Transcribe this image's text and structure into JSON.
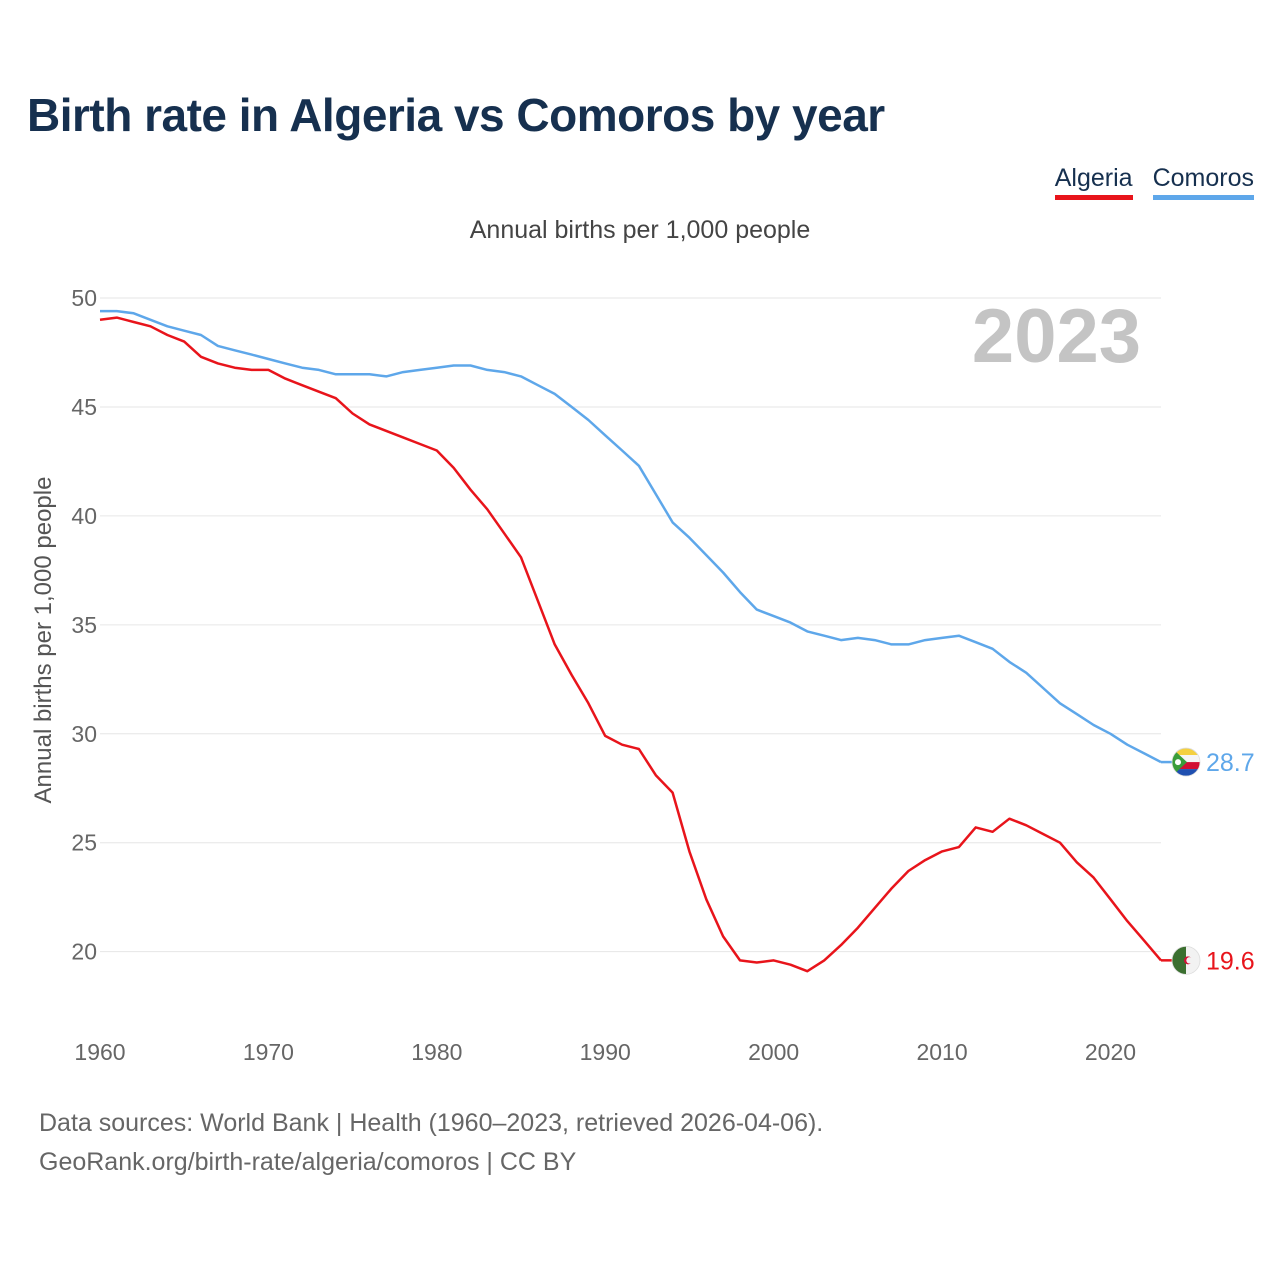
{
  "title": "Birth rate in Algeria vs Comoros by year",
  "subtitle": "Annual births per 1,000 people",
  "year_label": "2023",
  "footer": {
    "line1": "Data sources: World Bank | Health (1960–2023, retrieved 2026-04-06).",
    "line2": "GeoRank.org/birth-rate/algeria/comoros | CC BY"
  },
  "chart_data": {
    "type": "line",
    "title": "Birth rate in Algeria vs Comoros by year",
    "subtitle": "Annual births per 1,000 people",
    "xlabel": "",
    "ylabel": "Annual births per 1,000 people",
    "xlim": [
      1960,
      2023
    ],
    "ylim": [
      17,
      50
    ],
    "xticks": [
      1960,
      1970,
      1980,
      1990,
      2000,
      2010,
      2020
    ],
    "yticks": [
      20,
      25,
      30,
      35,
      40,
      45,
      50
    ],
    "grid": true,
    "legend_position": "top-right",
    "x": [
      1960,
      1961,
      1962,
      1963,
      1964,
      1965,
      1966,
      1967,
      1968,
      1969,
      1970,
      1971,
      1972,
      1973,
      1974,
      1975,
      1976,
      1977,
      1978,
      1979,
      1980,
      1981,
      1982,
      1983,
      1984,
      1985,
      1986,
      1987,
      1988,
      1989,
      1990,
      1991,
      1992,
      1993,
      1994,
      1995,
      1996,
      1997,
      1998,
      1999,
      2000,
      2001,
      2002,
      2003,
      2004,
      2005,
      2006,
      2007,
      2008,
      2009,
      2010,
      2011,
      2012,
      2013,
      2014,
      2015,
      2016,
      2017,
      2018,
      2019,
      2020,
      2021,
      2022,
      2023
    ],
    "series": [
      {
        "name": "Algeria",
        "color": "#e8141b",
        "end_label": "19.6",
        "values": [
          49.0,
          49.1,
          48.9,
          48.7,
          48.3,
          48.0,
          47.3,
          47.0,
          46.8,
          46.7,
          46.7,
          46.3,
          46.0,
          45.7,
          45.4,
          44.7,
          44.2,
          43.9,
          43.6,
          43.3,
          43.0,
          42.2,
          41.2,
          40.3,
          39.2,
          38.1,
          36.1,
          34.1,
          32.7,
          31.4,
          29.9,
          29.5,
          29.3,
          28.1,
          27.3,
          24.6,
          22.4,
          20.7,
          19.6,
          19.5,
          19.6,
          19.4,
          19.1,
          19.6,
          20.3,
          21.1,
          22.0,
          22.9,
          23.7,
          24.2,
          24.6,
          24.8,
          25.7,
          25.5,
          26.1,
          25.8,
          25.4,
          25.0,
          24.1,
          23.4,
          22.4,
          21.4,
          20.5,
          19.6
        ]
      },
      {
        "name": "Comoros",
        "color": "#5ea7ea",
        "end_label": "28.7",
        "values": [
          49.4,
          49.4,
          49.3,
          49.0,
          48.7,
          48.5,
          48.3,
          47.8,
          47.6,
          47.4,
          47.2,
          47.0,
          46.8,
          46.7,
          46.5,
          46.5,
          46.5,
          46.4,
          46.6,
          46.7,
          46.8,
          46.9,
          46.9,
          46.7,
          46.6,
          46.4,
          46.0,
          45.6,
          45.0,
          44.4,
          43.7,
          43.0,
          42.3,
          41.0,
          39.7,
          39.0,
          38.2,
          37.4,
          36.5,
          35.7,
          35.4,
          35.1,
          34.7,
          34.5,
          34.3,
          34.4,
          34.3,
          34.1,
          34.1,
          34.3,
          34.4,
          34.5,
          34.2,
          33.9,
          33.3,
          32.8,
          32.1,
          31.4,
          30.9,
          30.4,
          30.0,
          29.5,
          29.1,
          28.7
        ]
      }
    ]
  }
}
